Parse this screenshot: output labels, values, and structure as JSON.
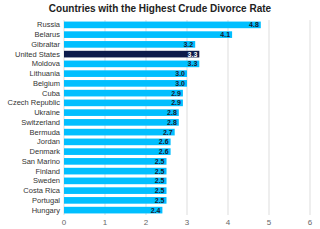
{
  "chart_data": {
    "type": "bar",
    "orientation": "horizontal",
    "title": "Countries with the Highest Crude Divorce Rate",
    "categories": [
      "Russia",
      "Belarus",
      "Gibraltar",
      "United States",
      "Moldova",
      "Lithuania",
      "Belgium",
      "Cuba",
      "Czech Republic",
      "Ukraine",
      "Switzerland",
      "Bermuda",
      "Jordan",
      "Denmark",
      "San Marino",
      "Finland",
      "Sweden",
      "Costa Rica",
      "Portugal",
      "Hungary"
    ],
    "values": [
      4.8,
      4.1,
      3.2,
      3.3,
      3.3,
      3.0,
      3.0,
      2.9,
      2.9,
      2.8,
      2.8,
      2.7,
      2.6,
      2.6,
      2.5,
      2.5,
      2.5,
      2.5,
      2.5,
      2.4
    ],
    "value_labels": [
      "4.8",
      "4.1",
      "3.2",
      "3.3",
      "3.3",
      "3.0",
      "3.0",
      "2.9",
      "2.9",
      "2.8",
      "2.8",
      "2.7",
      "2.6",
      "2.6",
      "2.5",
      "2.5",
      "2.5",
      "2.5",
      "2.5",
      "2.4"
    ],
    "colors": [
      "#00bfff",
      "#00bfff",
      "#00bfff",
      "#0d1b4b",
      "#00bfff",
      "#00bfff",
      "#00bfff",
      "#00bfff",
      "#00bfff",
      "#00bfff",
      "#00bfff",
      "#00bfff",
      "#00bfff",
      "#00bfff",
      "#00bfff",
      "#00bfff",
      "#00bfff",
      "#00bfff",
      "#00bfff",
      "#00bfff"
    ],
    "xlim": [
      0,
      6
    ],
    "xticks": [
      0,
      1,
      2,
      3,
      4,
      5,
      6
    ],
    "grid": true,
    "data_labels": true
  }
}
